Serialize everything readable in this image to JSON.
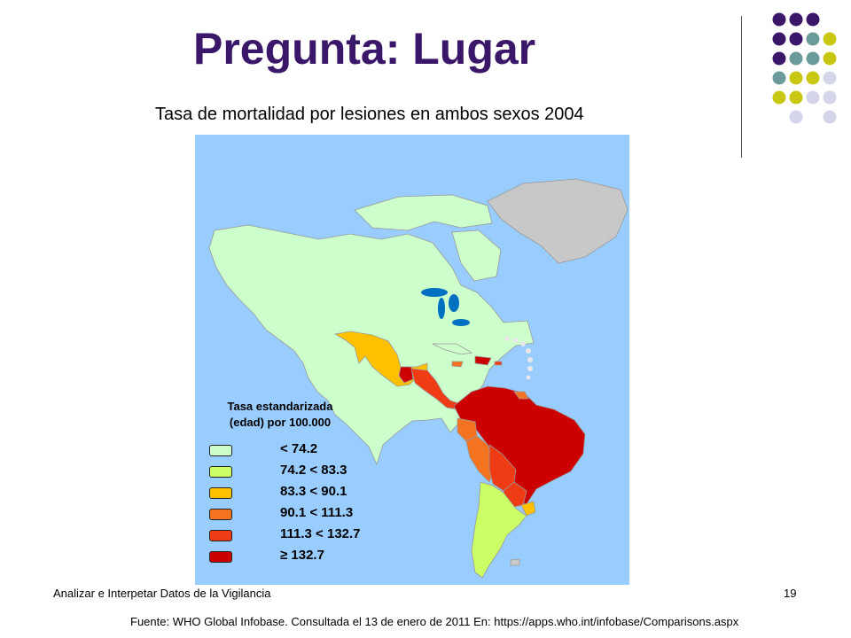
{
  "slide": {
    "title": "Pregunta: Lugar",
    "subtitle": "Tasa de mortalidad por lesiones en ambos sexos 2004",
    "footer_left": "Analizar e Interpetar Datos de la Vigilancia",
    "page_number": "19",
    "source": "Fuente: WHO Global Infobase. Consultada el 13 de enero de 2011 En:  https://apps.who.int/infobase/Comparisons.aspx"
  },
  "map": {
    "legend_title_line1": "Tasa estandarizada",
    "legend_title_line2": "(edad) por 100.000",
    "legend": [
      {
        "label": "< 74.2",
        "color": "#ccffcc"
      },
      {
        "label": "74.2 < 83.3",
        "color": "#ccff66"
      },
      {
        "label": "83.3 < 90.1",
        "color": "#ffc000"
      },
      {
        "label": "90.1 < 111.3",
        "color": "#f47320"
      },
      {
        "label": "111.3 < 132.7",
        "color": "#f03c14"
      },
      {
        "label": "≥ 132.7",
        "color": "#cc0000"
      }
    ],
    "colors": {
      "ocean": "#99ccff",
      "no_data": "#c8c8c8",
      "border": "#9a9a9a",
      "lake": "#0070c0"
    }
  },
  "decor": {
    "dot_colors": [
      "#3a1769",
      "#6a9a9a",
      "#c8c812",
      "#d4d4ea"
    ]
  }
}
